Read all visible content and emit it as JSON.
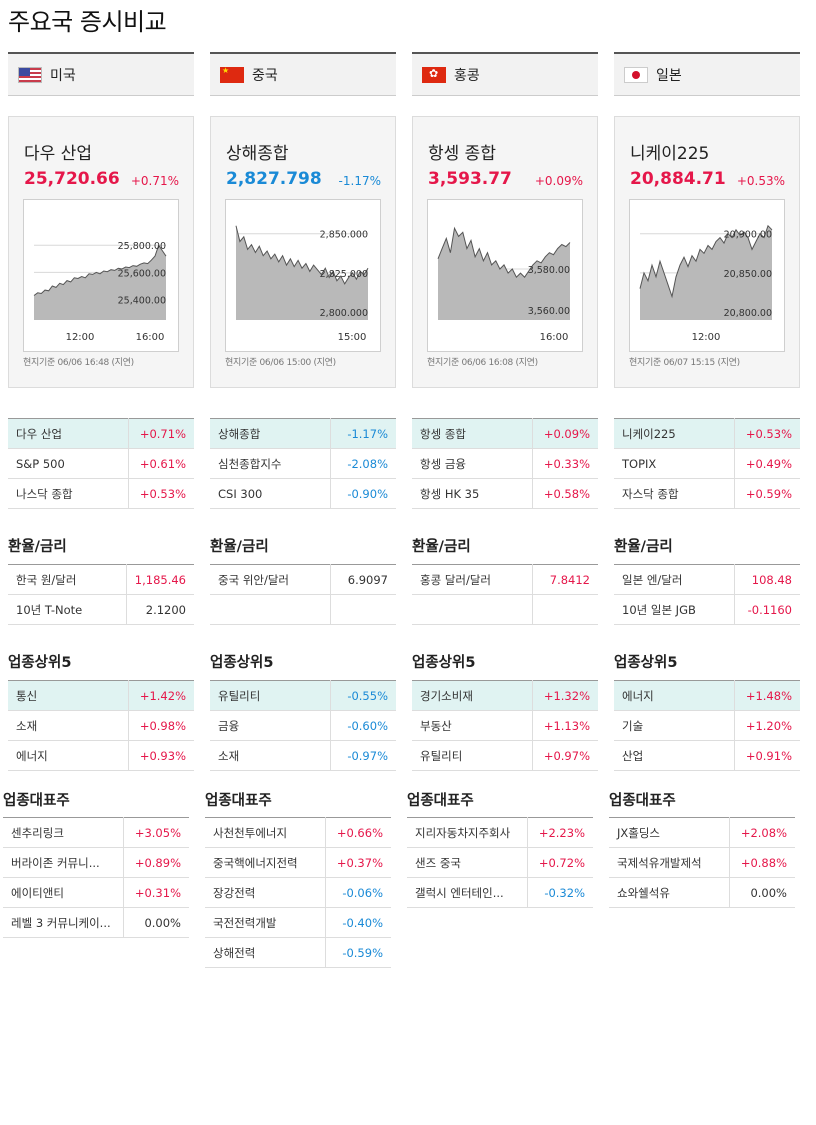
{
  "page_title": "주요국 증시비교",
  "section_labels": {
    "fx": "환율/금리",
    "sector": "업종상위5",
    "stocks": "업종대표주"
  },
  "columns": [
    {
      "country": "미국",
      "flag": "us-flag-icon",
      "index": {
        "name": "다우 산업",
        "value": "25,720.66",
        "change": "+0.71%",
        "dir": "up"
      },
      "chart_note": "현지기준 06/06 16:48 (지연)",
      "chart_data": {
        "type": "area",
        "y_ticks": [
          "25,800.00",
          "25,600.00",
          "25,400.00"
        ],
        "y_tick_values": [
          25800,
          25600,
          25400
        ],
        "ylim": [
          25250,
          26000
        ],
        "x_ticks": [
          "12:00",
          "16:00"
        ],
        "values": [
          25430,
          25450,
          25445,
          25470,
          25465,
          25500,
          25490,
          25520,
          25510,
          25540,
          25530,
          25560,
          25555,
          25570,
          25560,
          25590,
          25585,
          25600,
          25590,
          25610,
          25605,
          25620,
          25615,
          25630,
          25625,
          25640,
          25635,
          25650,
          25645,
          25660,
          25670,
          25665,
          25690,
          25720,
          25800,
          25760,
          25720
        ]
      },
      "indices": [
        {
          "name": "다우 산업",
          "value": "+0.71%",
          "dir": "up"
        },
        {
          "name": "S&P 500",
          "value": "+0.61%",
          "dir": "up"
        },
        {
          "name": "나스닥 종합",
          "value": "+0.53%",
          "dir": "up"
        }
      ],
      "fx": [
        {
          "name": "한국 원/달러",
          "value": "1,185.46",
          "dir": "up"
        },
        {
          "name": "10년 T-Note",
          "value": "2.1200",
          "dir": "flat"
        }
      ],
      "sectors": [
        {
          "name": "통신",
          "value": "+1.42%",
          "dir": "up"
        },
        {
          "name": "소재",
          "value": "+0.98%",
          "dir": "up"
        },
        {
          "name": "에너지",
          "value": "+0.93%",
          "dir": "up"
        }
      ],
      "stocks": [
        {
          "name": "센추리링크",
          "value": "+3.05%",
          "dir": "up"
        },
        {
          "name": "버라이존 커뮤니...",
          "value": "+0.89%",
          "dir": "up"
        },
        {
          "name": "에이티앤티",
          "value": "+0.31%",
          "dir": "up"
        },
        {
          "name": "레벨 3 커뮤니케이...",
          "value": "0.00%",
          "dir": "flat"
        }
      ]
    },
    {
      "country": "중국",
      "flag": "cn-flag-icon",
      "index": {
        "name": "상해종합",
        "value": "2,827.798",
        "change": "-1.17%",
        "dir": "down"
      },
      "chart_note": "현지기준 06/06 15:00 (지연)",
      "chart_data": {
        "type": "area",
        "y_ticks": [
          "2,850.000",
          "2,825.000",
          "2,800.000"
        ],
        "y_tick_values": [
          2850,
          2825,
          2800
        ],
        "ylim": [
          2795,
          2860
        ],
        "x_ticks": [
          "15:00"
        ],
        "values": [
          2855,
          2845,
          2848,
          2840,
          2843,
          2838,
          2842,
          2836,
          2839,
          2834,
          2837,
          2832,
          2836,
          2830,
          2834,
          2829,
          2833,
          2828,
          2831,
          2826,
          2830,
          2827,
          2824,
          2828,
          2822,
          2826,
          2820,
          2823,
          2818,
          2822,
          2825,
          2821,
          2826,
          2824,
          2828
        ]
      },
      "indices": [
        {
          "name": "상해종합",
          "value": "-1.17%",
          "dir": "down"
        },
        {
          "name": "심천종합지수",
          "value": "-2.08%",
          "dir": "down"
        },
        {
          "name": "CSI 300",
          "value": "-0.90%",
          "dir": "down"
        }
      ],
      "fx": [
        {
          "name": "중국 위안/달러",
          "value": "6.9097",
          "dir": "flat"
        },
        {
          "name": "",
          "value": "",
          "dir": "flat"
        }
      ],
      "sectors": [
        {
          "name": "유틸리티",
          "value": "-0.55%",
          "dir": "down"
        },
        {
          "name": "금융",
          "value": "-0.60%",
          "dir": "down"
        },
        {
          "name": "소재",
          "value": "-0.97%",
          "dir": "down"
        }
      ],
      "stocks": [
        {
          "name": "사천천투에너지",
          "value": "+0.66%",
          "dir": "up"
        },
        {
          "name": "중국핵에너지전력",
          "value": "+0.37%",
          "dir": "up"
        },
        {
          "name": "장강전력",
          "value": "-0.06%",
          "dir": "down"
        },
        {
          "name": "국전전력개발",
          "value": "-0.40%",
          "dir": "down"
        },
        {
          "name": "상해전력",
          "value": "-0.59%",
          "dir": "down"
        }
      ]
    },
    {
      "country": "홍콩",
      "flag": "hk-flag-icon",
      "index": {
        "name": "항셍 종합",
        "value": "3,593.77",
        "change": "+0.09%",
        "dir": "up"
      },
      "chart_note": "현지기준 06/06 16:08 (지연)",
      "chart_data": {
        "type": "area",
        "y_ticks": [
          "3,580.00",
          "3,560.00"
        ],
        "y_tick_values": [
          3580,
          3560
        ],
        "ylim": [
          3555,
          3605
        ],
        "x_ticks": [
          "16:00"
        ],
        "values": [
          3585,
          3590,
          3595,
          3588,
          3600,
          3596,
          3598,
          3590,
          3594,
          3586,
          3590,
          3584,
          3588,
          3582,
          3584,
          3580,
          3582,
          3578,
          3580,
          3576,
          3578,
          3576,
          3579,
          3582,
          3584,
          3583,
          3586,
          3588,
          3587,
          3590,
          3592,
          3591,
          3593
        ]
      },
      "indices": [
        {
          "name": "항셍 종합",
          "value": "+0.09%",
          "dir": "up"
        },
        {
          "name": "항셍 금융",
          "value": "+0.33%",
          "dir": "up"
        },
        {
          "name": "항셍 HK 35",
          "value": "+0.58%",
          "dir": "up"
        }
      ],
      "fx": [
        {
          "name": "홍콩 달러/달러",
          "value": "7.8412",
          "dir": "up"
        },
        {
          "name": "",
          "value": "",
          "dir": "flat"
        }
      ],
      "sectors": [
        {
          "name": "경기소비재",
          "value": "+1.32%",
          "dir": "up"
        },
        {
          "name": "부동산",
          "value": "+1.13%",
          "dir": "up"
        },
        {
          "name": "유틸리티",
          "value": "+0.97%",
          "dir": "up"
        }
      ],
      "stocks": [
        {
          "name": "지리자동차지주회사",
          "value": "+2.23%",
          "dir": "up"
        },
        {
          "name": "샌즈 중국",
          "value": "+0.72%",
          "dir": "up"
        },
        {
          "name": "갤럭시 엔터테인...",
          "value": "-0.32%",
          "dir": "down"
        }
      ]
    },
    {
      "country": "일본",
      "flag": "jp-flag-icon",
      "index": {
        "name": "니케이225",
        "value": "20,884.71",
        "change": "+0.53%",
        "dir": "up"
      },
      "chart_note": "현지기준 06/07 15:15 (지연)",
      "chart_data": {
        "type": "area",
        "y_ticks": [
          "20,900.00",
          "20,850.00",
          "20,800.00"
        ],
        "y_tick_values": [
          20900,
          20850,
          20800
        ],
        "ylim": [
          20790,
          20920
        ],
        "x_ticks": [
          "12:00"
        ],
        "values": [
          20830,
          20850,
          20840,
          20860,
          20845,
          20865,
          20850,
          20835,
          20820,
          20845,
          20860,
          20870,
          20858,
          20872,
          20865,
          20880,
          20875,
          20885,
          20880,
          20890,
          20895,
          20888,
          20900,
          20895,
          20905,
          20898,
          20902,
          20895,
          20880,
          20890,
          20900,
          20895,
          20910,
          20905
        ]
      },
      "indices": [
        {
          "name": "니케이225",
          "value": "+0.53%",
          "dir": "up"
        },
        {
          "name": "TOPIX",
          "value": "+0.49%",
          "dir": "up"
        },
        {
          "name": "자스닥 종합",
          "value": "+0.59%",
          "dir": "up"
        }
      ],
      "fx": [
        {
          "name": "일본 엔/달러",
          "value": "108.48",
          "dir": "up"
        },
        {
          "name": "10년 일본 JGB",
          "value": "-0.1160",
          "dir": "up"
        }
      ],
      "sectors": [
        {
          "name": "에너지",
          "value": "+1.48%",
          "dir": "up"
        },
        {
          "name": "기술",
          "value": "+1.20%",
          "dir": "up"
        },
        {
          "name": "산업",
          "value": "+0.91%",
          "dir": "up"
        }
      ],
      "stocks": [
        {
          "name": "JX홀딩스",
          "value": "+2.08%",
          "dir": "up"
        },
        {
          "name": "국제석유개발제석",
          "value": "+0.88%",
          "dir": "up"
        },
        {
          "name": "쇼와쉘석유",
          "value": "0.00%",
          "dir": "flat"
        }
      ]
    }
  ]
}
